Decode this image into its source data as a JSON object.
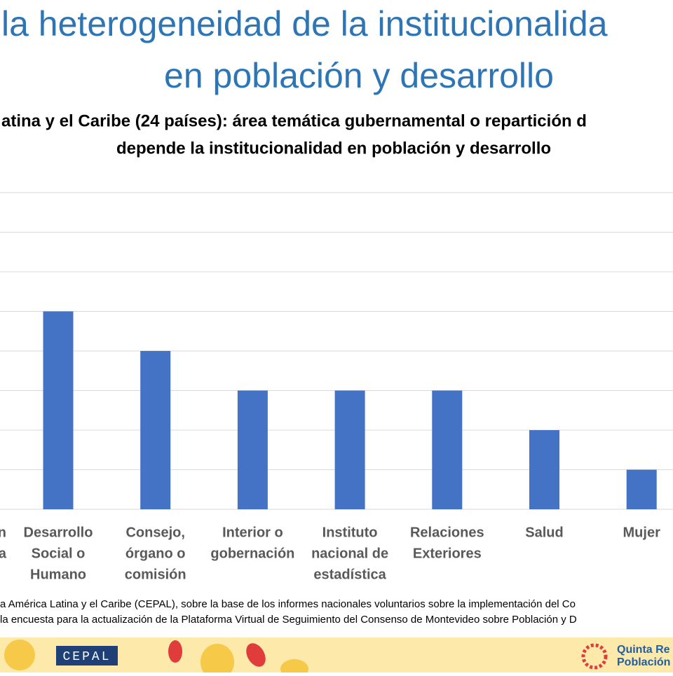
{
  "chart_data": {
    "type": "bar",
    "title": [
      "la heterogeneidad de la institucionalida",
      "en población y desarrollo"
    ],
    "subtitle": [
      "atina y el Caribe (24 países): área temática gubernamental o repartición d",
      "depende la institucionalidad en población y desarrollo"
    ],
    "categories": [
      [
        "n",
        "a"
      ],
      [
        "Desarrollo",
        "Social o",
        "Humano"
      ],
      [
        "Consejo,",
        "órgano o",
        "comisión"
      ],
      [
        "Interior o",
        "gobernación"
      ],
      [
        "Instituto",
        "nacional de",
        "estadística"
      ],
      [
        "Relaciones",
        "Exteriores"
      ],
      [
        "Salud"
      ],
      [
        "Mujer"
      ]
    ],
    "values": [
      null,
      5,
      4,
      3,
      3,
      3,
      2,
      1
    ],
    "color": "#4472c4",
    "ylim": [
      0,
      8
    ],
    "yticks": [
      0,
      1,
      2,
      3,
      4,
      5,
      6,
      7,
      8
    ],
    "grid": true,
    "source": [
      "a América Latina y el Caribe (CEPAL), sobre la base de los informes nacionales voluntarios sobre la implementación del Co",
      "la encuesta para la actualización de la Plataforma Virtual de Seguimiento del Consenso de Montevideo sobre Población y D"
    ],
    "footer": {
      "logo": "CEPAL",
      "event": [
        "Quinta Re",
        "Población"
      ]
    }
  }
}
